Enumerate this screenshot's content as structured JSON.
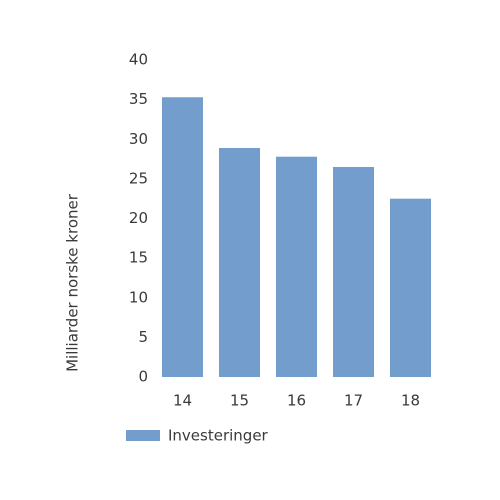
{
  "chart_data": {
    "type": "bar",
    "y_label": "Milliarder norske kroner",
    "categories": [
      "14",
      "15",
      "16",
      "17",
      "18"
    ],
    "series": [
      {
        "name": "Investeringer",
        "color": "#729dcc",
        "values": [
          35.3,
          28.9,
          27.8,
          26.5,
          22.5
        ]
      }
    ],
    "ylim": [
      0,
      40
    ],
    "yticks": [
      0,
      5,
      10,
      15,
      20,
      25,
      30,
      35,
      40
    ],
    "grid": false
  }
}
